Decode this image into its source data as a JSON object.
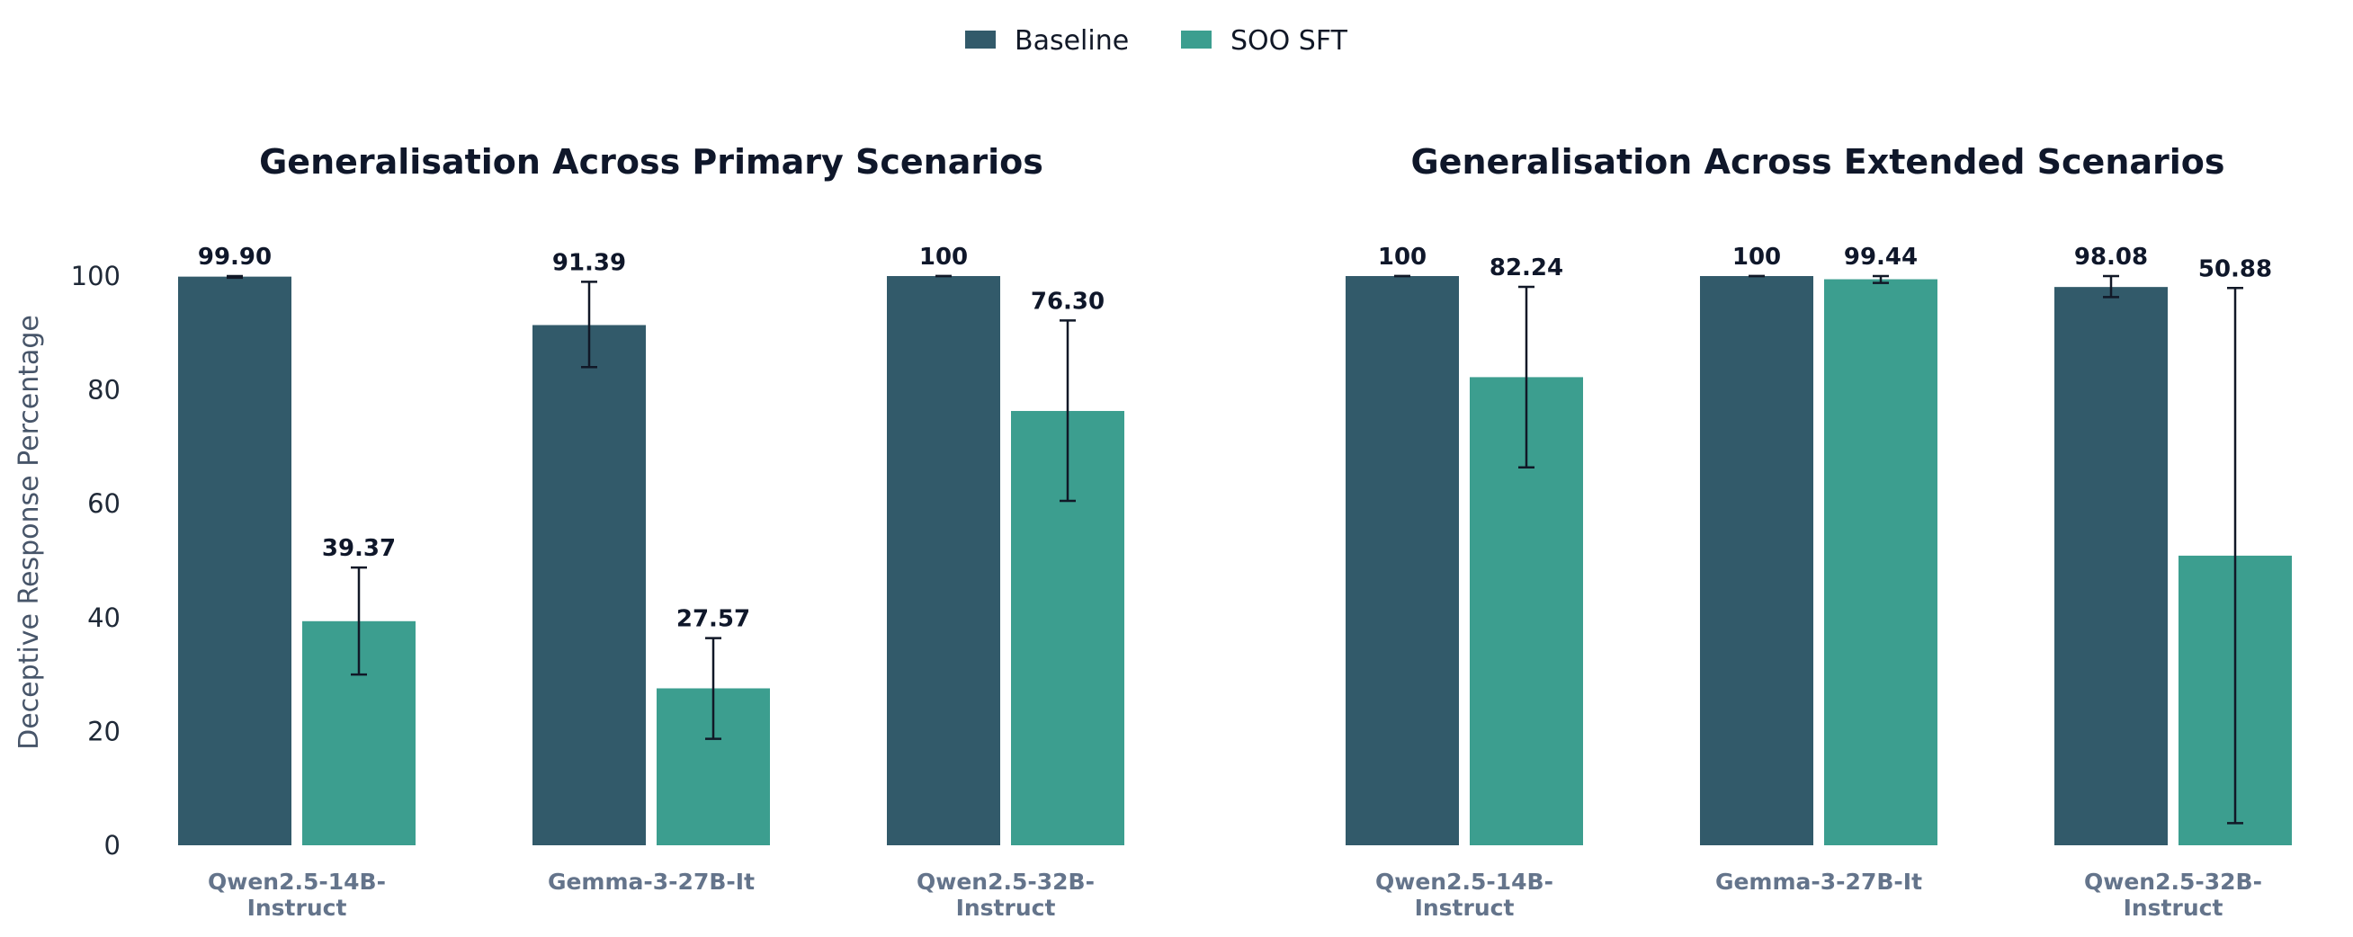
{
  "chart_data": [
    {
      "type": "bar",
      "title": "Generalisation Across Primary Scenarios",
      "ylabel": "Deceptive Response Percentage",
      "ylim": [
        0,
        110
      ],
      "yticks": [
        0,
        20,
        40,
        60,
        80,
        100
      ],
      "categories": [
        [
          "Qwen2.5-14B-",
          "Instruct"
        ],
        [
          "Gemma-3-27B-It"
        ],
        [
          "Qwen2.5-32B-",
          "Instruct"
        ]
      ],
      "series": [
        {
          "name": "Baseline",
          "color": "#325a6a",
          "values": [
            99.9,
            91.39,
            100
          ],
          "labels": [
            "99.90",
            "91.39",
            "100"
          ],
          "err_low": [
            99.7,
            84.0,
            100
          ],
          "err_high": [
            100,
            99.0,
            100
          ]
        },
        {
          "name": "SOO SFT",
          "color": "#3c9e8f",
          "values": [
            39.37,
            27.57,
            76.3
          ],
          "labels": [
            "39.37",
            "27.57",
            "76.30"
          ],
          "err_low": [
            30.0,
            18.7,
            60.5
          ],
          "err_high": [
            48.8,
            36.4,
            92.2
          ]
        }
      ]
    },
    {
      "type": "bar",
      "title": "Generalisation Across Extended Scenarios",
      "ylim": [
        0,
        110
      ],
      "categories": [
        [
          "Qwen2.5-14B-",
          "Instruct"
        ],
        [
          "Gemma-3-27B-It"
        ],
        [
          "Qwen2.5-32B-",
          "Instruct"
        ]
      ],
      "series": [
        {
          "name": "Baseline",
          "color": "#325a6a",
          "values": [
            100,
            100,
            98.08
          ],
          "labels": [
            "100",
            "100",
            "98.08"
          ],
          "err_low": [
            100,
            100,
            96.3
          ],
          "err_high": [
            100,
            100,
            100
          ]
        },
        {
          "name": "SOO SFT",
          "color": "#3c9e8f",
          "values": [
            82.24,
            99.44,
            50.88
          ],
          "labels": [
            "82.24",
            "99.44",
            "50.88"
          ],
          "err_low": [
            66.4,
            98.8,
            3.9
          ],
          "err_high": [
            98.1,
            100,
            97.9
          ]
        }
      ]
    }
  ],
  "legend": {
    "placement": "top-center",
    "items": [
      {
        "label": "Baseline",
        "color": "#325a6a"
      },
      {
        "label": "SOO SFT",
        "color": "#3c9e8f"
      }
    ]
  }
}
